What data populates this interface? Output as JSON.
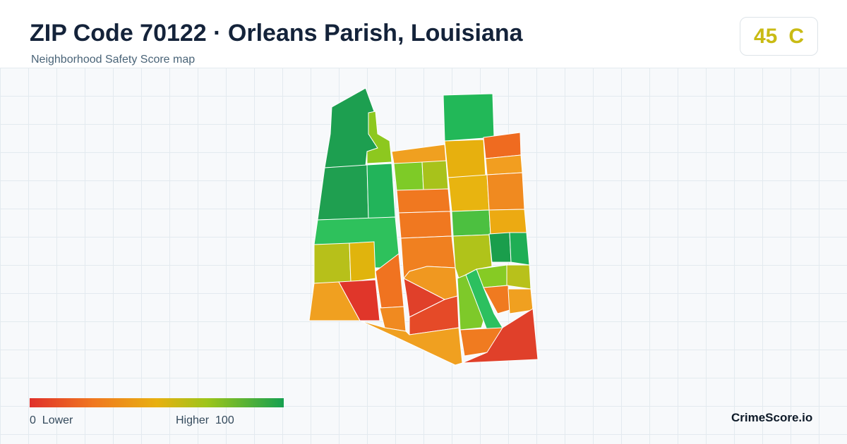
{
  "header": {
    "title": "ZIP Code 70122 · Orleans Parish, Louisiana",
    "subtitle": "Neighborhood Safety Score map"
  },
  "badge": {
    "score": "45",
    "grade": "C"
  },
  "legend": {
    "min": "0",
    "min_label": "Lower",
    "max_label": "Higher",
    "max": "100"
  },
  "footer": {
    "brand": "CrimeScore.io"
  }
}
